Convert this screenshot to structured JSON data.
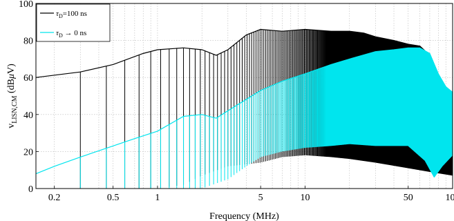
{
  "chart_data": {
    "type": "line",
    "title": "",
    "xlabel": "Frequency (MHz)",
    "ylabel": {
      "base": "v",
      "subscript": "LISN,CM",
      "unit_open": " (dB",
      "unit_greek": "μ",
      "unit_close": "V)"
    },
    "x_scale": "log",
    "xlim": [
      0.15,
      100
    ],
    "ylim": [
      0,
      100
    ],
    "grid": true,
    "x_ticks": [
      {
        "value": 0.2,
        "label": "0.2"
      },
      {
        "value": 0.5,
        "label": "0.5"
      },
      {
        "value": 1,
        "label": "1"
      },
      {
        "value": 5,
        "label": "5"
      },
      {
        "value": 10,
        "label": "10"
      },
      {
        "value": 50,
        "label": "50"
      },
      {
        "value": 100,
        "label": "100"
      }
    ],
    "y_ticks": [
      {
        "value": 0,
        "label": "0"
      },
      {
        "value": 20,
        "label": "20"
      },
      {
        "value": 40,
        "label": "40"
      },
      {
        "value": 60,
        "label": "60"
      },
      {
        "value": 80,
        "label": "80"
      },
      {
        "value": 100,
        "label": "100"
      }
    ],
    "legend": {
      "placement": "top-left",
      "entries": [
        {
          "symbol": "τ",
          "subscript": "D",
          "text": "=100 ns",
          "color": "#000000"
        },
        {
          "symbol": "τ",
          "subscript": "D",
          "text": " → 0 ns",
          "color": "#00e5ee"
        }
      ]
    },
    "series": [
      {
        "label_index": 0,
        "color": "#000000",
        "harmonic_spacing_mhz": 0.15,
        "envelope_upper": [
          {
            "x": 0.15,
            "y": 60
          },
          {
            "x": 0.3,
            "y": 63
          },
          {
            "x": 0.5,
            "y": 67
          },
          {
            "x": 0.8,
            "y": 73
          },
          {
            "x": 1.0,
            "y": 75
          },
          {
            "x": 1.5,
            "y": 76
          },
          {
            "x": 2.0,
            "y": 75
          },
          {
            "x": 2.5,
            "y": 72
          },
          {
            "x": 3.0,
            "y": 75
          },
          {
            "x": 4.0,
            "y": 83
          },
          {
            "x": 5.0,
            "y": 86
          },
          {
            "x": 7.0,
            "y": 85
          },
          {
            "x": 10.0,
            "y": 86
          },
          {
            "x": 15.0,
            "y": 85
          },
          {
            "x": 20.0,
            "y": 85
          },
          {
            "x": 25.0,
            "y": 84
          },
          {
            "x": 30.0,
            "y": 82
          },
          {
            "x": 40.0,
            "y": 80
          },
          {
            "x": 50.0,
            "y": 78
          },
          {
            "x": 60.0,
            "y": 77
          },
          {
            "x": 70.0,
            "y": 72
          },
          {
            "x": 80.0,
            "y": 55
          },
          {
            "x": 100.0,
            "y": 40
          }
        ],
        "envelope_lower": [
          {
            "x": 0.15,
            "y": 0
          },
          {
            "x": 1.0,
            "y": 0
          },
          {
            "x": 1.5,
            "y": 2
          },
          {
            "x": 2.0,
            "y": 7
          },
          {
            "x": 3.0,
            "y": 12
          },
          {
            "x": 5.0,
            "y": 14
          },
          {
            "x": 7.0,
            "y": 17
          },
          {
            "x": 10.0,
            "y": 18
          },
          {
            "x": 15.0,
            "y": 17
          },
          {
            "x": 20.0,
            "y": 16
          },
          {
            "x": 30.0,
            "y": 14
          },
          {
            "x": 50.0,
            "y": 11
          },
          {
            "x": 70.0,
            "y": 9
          },
          {
            "x": 100.0,
            "y": 7
          }
        ]
      },
      {
        "label_index": 1,
        "color": "#00e5ee",
        "harmonic_spacing_mhz": 0.15,
        "envelope_upper": [
          {
            "x": 0.15,
            "y": 8
          },
          {
            "x": 0.2,
            "y": 12
          },
          {
            "x": 0.3,
            "y": 17
          },
          {
            "x": 0.5,
            "y": 23
          },
          {
            "x": 0.7,
            "y": 27
          },
          {
            "x": 1.0,
            "y": 31
          },
          {
            "x": 1.5,
            "y": 39
          },
          {
            "x": 2.0,
            "y": 40
          },
          {
            "x": 2.5,
            "y": 38
          },
          {
            "x": 3.0,
            "y": 42
          },
          {
            "x": 5.0,
            "y": 53
          },
          {
            "x": 7.0,
            "y": 58
          },
          {
            "x": 10.0,
            "y": 62
          },
          {
            "x": 15.0,
            "y": 67
          },
          {
            "x": 20.0,
            "y": 70
          },
          {
            "x": 30.0,
            "y": 74
          },
          {
            "x": 40.0,
            "y": 75
          },
          {
            "x": 50.0,
            "y": 76
          },
          {
            "x": 60.0,
            "y": 76
          },
          {
            "x": 70.0,
            "y": 73
          },
          {
            "x": 80.0,
            "y": 62
          },
          {
            "x": 90.0,
            "y": 55
          },
          {
            "x": 100.0,
            "y": 52
          }
        ],
        "envelope_lower": [
          {
            "x": 0.15,
            "y": 0
          },
          {
            "x": 2.0,
            "y": 0
          },
          {
            "x": 3.0,
            "y": 5
          },
          {
            "x": 4.0,
            "y": 12
          },
          {
            "x": 5.0,
            "y": 17
          },
          {
            "x": 7.0,
            "y": 20
          },
          {
            "x": 10.0,
            "y": 22
          },
          {
            "x": 15.0,
            "y": 23
          },
          {
            "x": 20.0,
            "y": 24
          },
          {
            "x": 30.0,
            "y": 23
          },
          {
            "x": 50.0,
            "y": 23
          },
          {
            "x": 65.0,
            "y": 15
          },
          {
            "x": 75.0,
            "y": 6
          },
          {
            "x": 85.0,
            "y": 12
          },
          {
            "x": 100.0,
            "y": 18
          }
        ]
      }
    ]
  }
}
